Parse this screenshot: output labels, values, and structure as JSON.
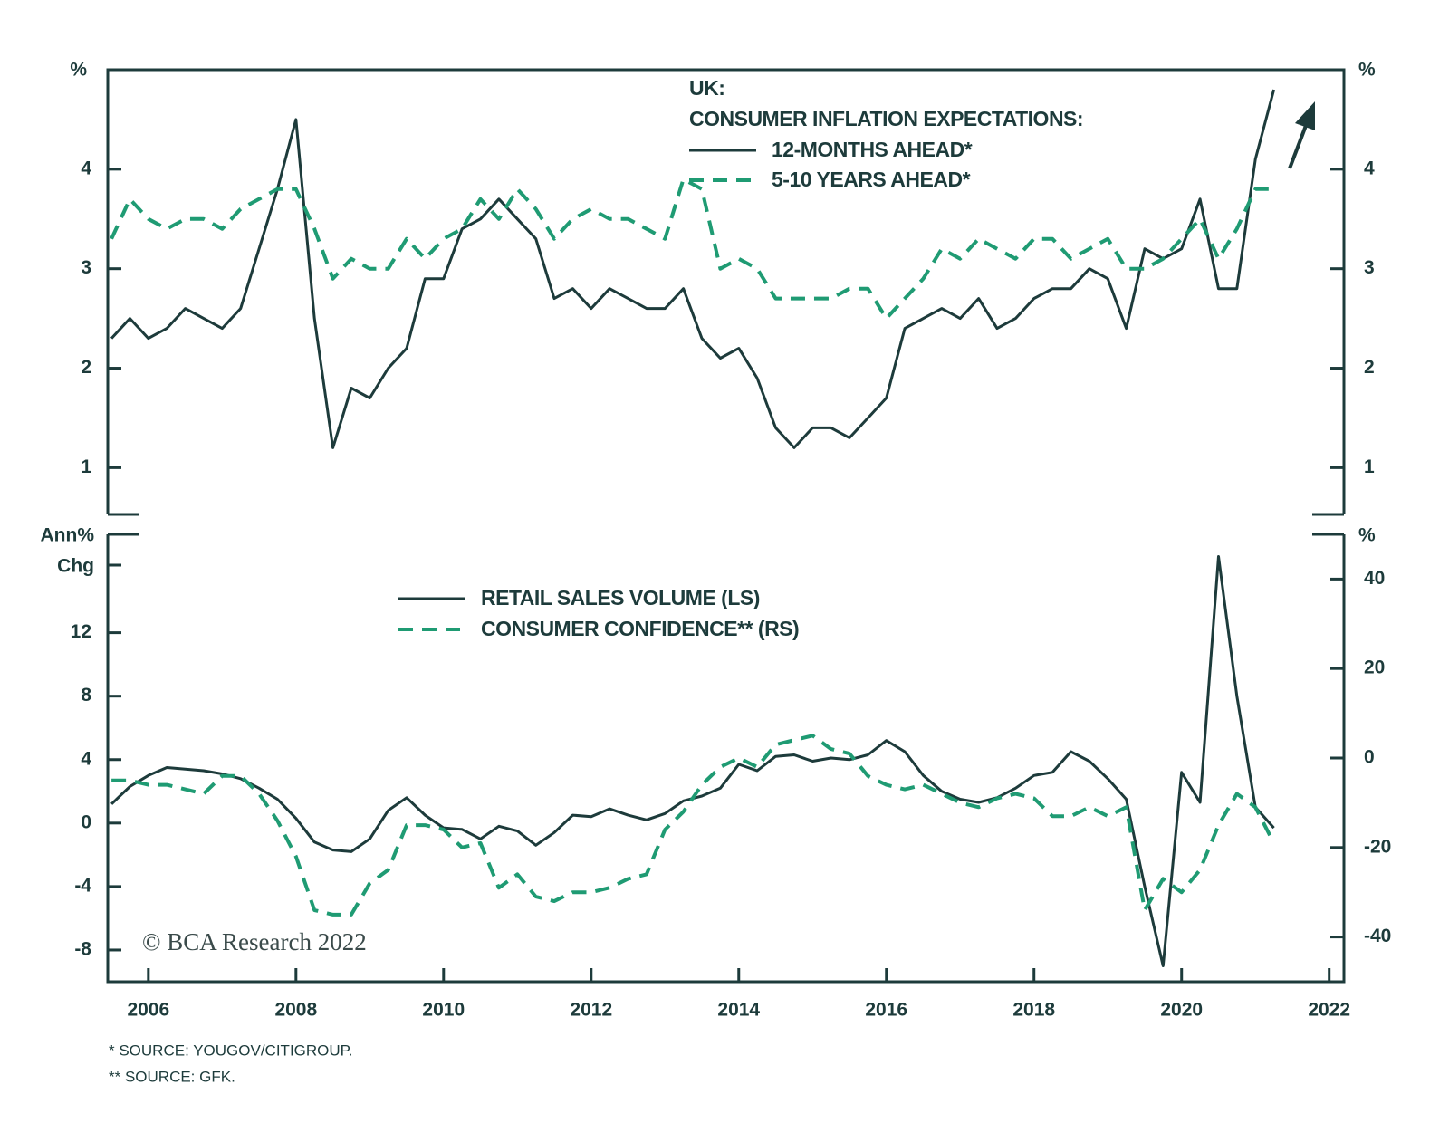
{
  "chart_data": [
    {
      "type": "line",
      "title": "UK:",
      "subtitle": "CONSUMER INFLATION EXPECTATIONS:",
      "ylabel": "%",
      "y2label": "%",
      "x": [
        2005.5,
        2005.75,
        2006,
        2006.25,
        2006.5,
        2006.75,
        2007,
        2007.25,
        2007.5,
        2007.75,
        2008,
        2008.25,
        2008.5,
        2008.75,
        2009,
        2009.25,
        2009.5,
        2009.75,
        2010,
        2010.25,
        2010.5,
        2010.75,
        2011,
        2011.25,
        2011.5,
        2011.75,
        2012,
        2012.25,
        2012.5,
        2012.75,
        2013,
        2013.25,
        2013.5,
        2013.75,
        2014,
        2014.25,
        2014.5,
        2014.75,
        2015,
        2015.25,
        2015.5,
        2015.75,
        2016,
        2016.25,
        2016.5,
        2016.75,
        2017,
        2017.25,
        2017.5,
        2017.75,
        2018,
        2018.25,
        2018.5,
        2018.75,
        2019,
        2019.25,
        2019.5,
        2019.75,
        2020,
        2020.25,
        2020.5,
        2020.75,
        2021,
        2021.25
      ],
      "xlim": [
        2005.45,
        2022.2
      ],
      "ylim": [
        0.53,
        5.0
      ],
      "yticks": [
        1,
        2,
        3,
        4
      ],
      "y2lim": [
        0.53,
        5.0
      ],
      "y2ticks": [
        1,
        2,
        3,
        4
      ],
      "series": [
        {
          "name": "12-MONTHS AHEAD*",
          "color": "#1d3b3b",
          "dashed": false,
          "values": [
            2.3,
            2.5,
            2.3,
            2.4,
            2.6,
            2.5,
            2.4,
            2.6,
            3.2,
            3.8,
            4.5,
            2.5,
            1.2,
            1.8,
            1.7,
            2.0,
            2.2,
            2.9,
            2.9,
            3.4,
            3.5,
            3.7,
            3.5,
            3.3,
            2.7,
            2.8,
            2.6,
            2.8,
            2.7,
            2.6,
            2.6,
            2.8,
            2.3,
            2.1,
            2.2,
            1.9,
            1.4,
            1.2,
            1.4,
            1.4,
            1.3,
            1.5,
            1.7,
            2.4,
            2.5,
            2.6,
            2.5,
            2.7,
            2.4,
            2.5,
            2.7,
            2.8,
            2.8,
            3.0,
            2.9,
            2.4,
            3.2,
            3.1,
            3.2,
            3.7,
            2.8,
            2.8,
            4.1,
            4.8
          ]
        },
        {
          "name": "5-10 YEARS AHEAD*",
          "color": "#1f9b73",
          "dashed": true,
          "values": [
            3.3,
            3.7,
            3.5,
            3.4,
            3.5,
            3.5,
            3.4,
            3.6,
            3.7,
            3.8,
            3.8,
            3.4,
            2.9,
            3.1,
            3.0,
            3.0,
            3.3,
            3.1,
            3.3,
            3.4,
            3.7,
            3.5,
            3.8,
            3.6,
            3.3,
            3.5,
            3.6,
            3.5,
            3.5,
            3.4,
            3.3,
            3.9,
            3.8,
            3.0,
            3.1,
            3.0,
            2.7,
            2.7,
            2.7,
            2.7,
            2.8,
            2.8,
            2.5,
            2.7,
            2.9,
            3.2,
            3.1,
            3.3,
            3.2,
            3.1,
            3.3,
            3.3,
            3.1,
            3.2,
            3.3,
            3.0,
            3.0,
            3.1,
            3.3,
            3.5,
            3.1,
            3.4,
            3.8,
            3.8
          ]
        }
      ]
    },
    {
      "type": "line",
      "ylabel": [
        "Ann%",
        "Chg"
      ],
      "y2label": "%",
      "annotation": "© BCA Research 2022",
      "x": [
        2005.5,
        2005.75,
        2006,
        2006.25,
        2006.5,
        2006.75,
        2007,
        2007.25,
        2007.5,
        2007.75,
        2008,
        2008.25,
        2008.5,
        2008.75,
        2009,
        2009.25,
        2009.5,
        2009.75,
        2010,
        2010.25,
        2010.5,
        2010.75,
        2011,
        2011.25,
        2011.5,
        2011.75,
        2012,
        2012.25,
        2012.5,
        2012.75,
        2013,
        2013.25,
        2013.5,
        2013.75,
        2014,
        2014.25,
        2014.5,
        2014.75,
        2015,
        2015.25,
        2015.5,
        2015.75,
        2016,
        2016.25,
        2016.5,
        2016.75,
        2017,
        2017.25,
        2017.5,
        2017.75,
        2018,
        2018.25,
        2018.5,
        2018.75,
        2019,
        2019.25,
        2019.5,
        2019.75,
        2020,
        2020.25,
        2020.5,
        2020.75,
        2021,
        2021.25
      ],
      "xlim": [
        2005.45,
        2022.2
      ],
      "xticks": [
        2006,
        2008,
        2010,
        2012,
        2014,
        2016,
        2018,
        2020,
        2022
      ],
      "ylim": [
        -10,
        18.2
      ],
      "yticks": [
        -8,
        -4,
        0,
        4,
        8,
        12
      ],
      "y2lim": [
        -50,
        50
      ],
      "y2ticks": [
        -40,
        -20,
        0,
        20,
        40
      ],
      "series": [
        {
          "name": "RETAIL SALES VOLUME (LS)",
          "color": "#1d3b3b",
          "dashed": false,
          "values": [
            1.2,
            2.3,
            3.0,
            3.5,
            3.4,
            3.3,
            3.1,
            2.8,
            2.2,
            1.5,
            0.3,
            -1.2,
            -1.7,
            -1.8,
            -1.0,
            0.8,
            1.6,
            0.5,
            -0.3,
            -0.4,
            -1.0,
            -0.2,
            -0.5,
            -1.4,
            -0.6,
            0.5,
            0.4,
            0.9,
            0.5,
            0.2,
            0.6,
            1.4,
            1.7,
            2.2,
            3.7,
            3.3,
            4.2,
            4.3,
            3.9,
            4.1,
            4.0,
            4.3,
            5.2,
            4.5,
            3.0,
            2.0,
            1.5,
            1.3,
            1.6,
            2.2,
            3.0,
            3.2,
            4.5,
            3.9,
            2.8,
            1.5,
            -4.0,
            -9.0,
            3.2,
            1.3,
            16.8,
            8.0,
            1.0,
            -0.3
          ]
        },
        {
          "name": "CONSUMER CONFIDENCE** (RS)",
          "color": "#1f9b73",
          "dashed": true,
          "axis": "y2",
          "values": [
            -5,
            -5,
            -6,
            -6,
            -7,
            -8,
            -4,
            -4,
            -8,
            -14,
            -22,
            -34,
            -35,
            -35,
            -28,
            -25,
            -15,
            -15,
            -16,
            -20,
            -19,
            -29,
            -26,
            -31,
            -32,
            -30,
            -30,
            -29,
            -27,
            -26,
            -16,
            -12,
            -6,
            -2,
            0,
            -2,
            3,
            4,
            5,
            2,
            1,
            -4,
            -6,
            -7,
            -6,
            -8,
            -10,
            -11,
            -9,
            -8,
            -9,
            -13,
            -13,
            -11,
            -13,
            -11,
            -34,
            -27,
            -30,
            -25,
            -15,
            -8,
            -11,
            -19
          ]
        }
      ]
    }
  ],
  "notes": [
    "* SOURCE: YOUGOV/CITIGROUP.",
    "** SOURCE: GFK."
  ]
}
